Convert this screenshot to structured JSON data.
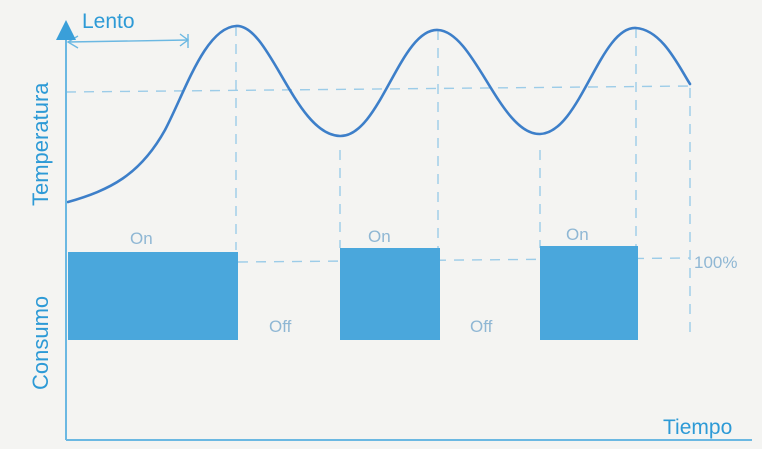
{
  "labels": {
    "y_axis_temperature": "Temperatura",
    "y_axis_consumption": "Consumo",
    "x_axis": "Tiempo",
    "slow": "Lento",
    "level_100": "100%",
    "on_1": "On",
    "on_2": "On",
    "on_3": "On",
    "off_1": "Off",
    "off_2": "Off"
  },
  "colors": {
    "background": "#f4f4f2",
    "axis_blue": "#3a9fd9",
    "curve_blue": "#3d7fc9",
    "block_blue": "#4aa7dc",
    "dashed": "#9ccce8",
    "text_blue": "#2d9ad6",
    "state_text": "#8fb7d4"
  }
}
